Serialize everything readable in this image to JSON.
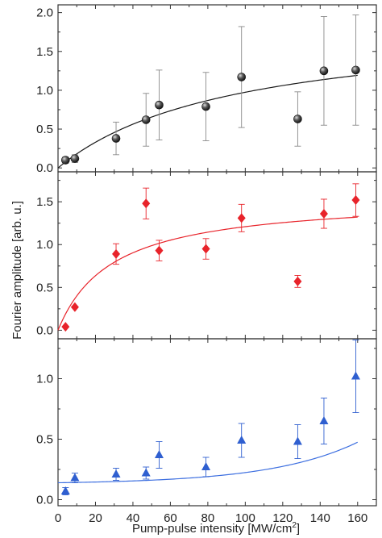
{
  "chart_data": {
    "type": "scatter",
    "layout": "3-panel vertical stack with shared x-axis",
    "xlabel": "Pump-pulse intensity [MW/cm",
    "xlabel_sup": "2",
    "xlabel_end": "]",
    "ylabel": "Fourier amplitude [arb. u.]",
    "xlim": [
      0,
      170
    ],
    "xticks": [
      0,
      20,
      40,
      60,
      80,
      100,
      120,
      140,
      160
    ],
    "grid": false,
    "legend": "none",
    "panels": [
      {
        "marker": "sphere",
        "color": "#2b2b2b",
        "fit_color": "#1a1a1a",
        "ylim": [
          -0.05,
          2.1
        ],
        "yticks": [
          0.0,
          0.5,
          1.0,
          1.5,
          2.0
        ],
        "ytick_labels": [
          "0.0",
          "0.5",
          "1.0",
          "1.5",
          "2.0"
        ],
        "points": [
          {
            "x": 4,
            "y": 0.1,
            "err": 0.04
          },
          {
            "x": 9,
            "y": 0.12,
            "err": 0.05
          },
          {
            "x": 31,
            "y": 0.38,
            "err": 0.21
          },
          {
            "x": 47,
            "y": 0.62,
            "err": 0.34
          },
          {
            "x": 54,
            "y": 0.81,
            "err": 0.45
          },
          {
            "x": 79,
            "y": 0.79,
            "err": 0.44
          },
          {
            "x": 98,
            "y": 1.17,
            "err": 0.65
          },
          {
            "x": 128,
            "y": 0.63,
            "err": 0.35
          },
          {
            "x": 142,
            "y": 1.25,
            "err": 0.7
          },
          {
            "x": 159,
            "y": 1.26,
            "err": 0.71
          }
        ],
        "fit": {
          "form": "saturation",
          "a": 1.9,
          "b": 95,
          "c": 0.0
        }
      },
      {
        "marker": "diamond",
        "color": "#e8232a",
        "fit_color": "#e8232a",
        "ylim": [
          -0.1,
          1.85
        ],
        "yticks": [
          0.0,
          0.5,
          1.0,
          1.5
        ],
        "ytick_labels": [
          "0.0",
          "0.5",
          "1.0",
          "1.5"
        ],
        "points": [
          {
            "x": 4,
            "y": 0.04,
            "err": 0.0
          },
          {
            "x": 9,
            "y": 0.27,
            "err": 0.0
          },
          {
            "x": 31,
            "y": 0.89,
            "err": 0.12
          },
          {
            "x": 47,
            "y": 1.48,
            "err": 0.18
          },
          {
            "x": 54,
            "y": 0.93,
            "err": 0.12
          },
          {
            "x": 79,
            "y": 0.95,
            "err": 0.12
          },
          {
            "x": 98,
            "y": 1.31,
            "err": 0.16
          },
          {
            "x": 128,
            "y": 0.57,
            "err": 0.07
          },
          {
            "x": 142,
            "y": 1.36,
            "err": 0.17
          },
          {
            "x": 159,
            "y": 1.52,
            "err": 0.19
          }
        ],
        "fit": {
          "form": "saturation",
          "a": 1.56,
          "b": 29,
          "c": 0.0
        }
      },
      {
        "marker": "triangle",
        "color": "#2f5fd0",
        "fit_color": "#3d6fe0",
        "ylim": [
          -0.05,
          1.33
        ],
        "yticks": [
          0.0,
          0.5,
          1.0
        ],
        "ytick_labels": [
          "0.0",
          "0.5",
          "1.0"
        ],
        "points": [
          {
            "x": 4,
            "y": 0.07,
            "err": 0.03
          },
          {
            "x": 9,
            "y": 0.18,
            "err": 0.04
          },
          {
            "x": 31,
            "y": 0.21,
            "err": 0.05
          },
          {
            "x": 47,
            "y": 0.22,
            "err": 0.05
          },
          {
            "x": 54,
            "y": 0.37,
            "err": 0.11
          },
          {
            "x": 79,
            "y": 0.27,
            "err": 0.08
          },
          {
            "x": 98,
            "y": 0.49,
            "err": 0.14
          },
          {
            "x": 128,
            "y": 0.48,
            "err": 0.14
          },
          {
            "x": 142,
            "y": 0.65,
            "err": 0.19
          },
          {
            "x": 159,
            "y": 1.02,
            "err": 0.3
          }
        ],
        "fit": {
          "form": "exp-growth",
          "a": 0.14,
          "b": 0.111,
          "c": 0.0215
        }
      }
    ]
  }
}
